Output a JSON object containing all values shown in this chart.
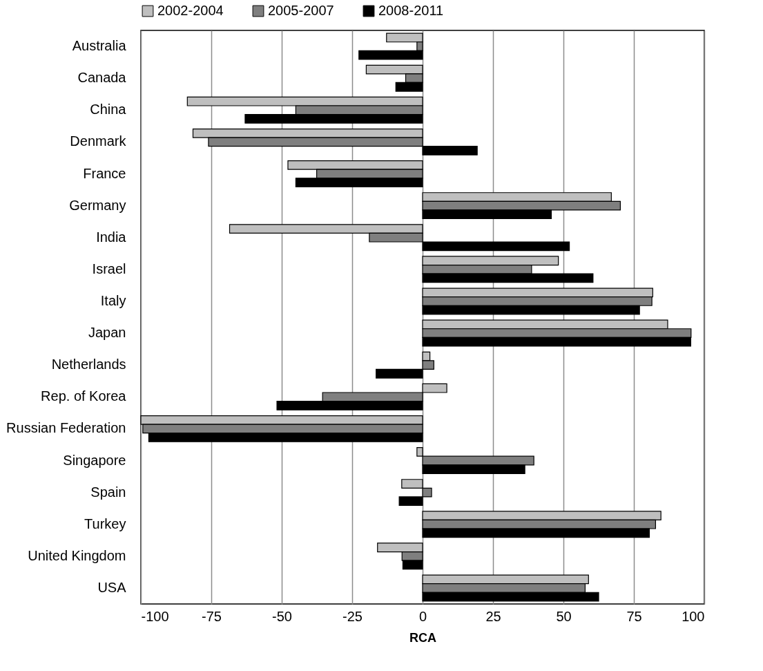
{
  "chart_data": {
    "type": "bar",
    "orientation": "horizontal",
    "xlabel": "RCA",
    "categories": [
      "Australia",
      "Canada",
      "China",
      "Denmark",
      "France",
      "Germany",
      "India",
      "Israel",
      "Italy",
      "Japan",
      "Netherlands",
      "Rep. of Korea",
      "Russian Federation",
      "Singapore",
      "Spain",
      "Turkey",
      "United Kingdom",
      "USA"
    ],
    "series": [
      {
        "name": "2002-2004",
        "color": "#bfbfbf",
        "values": [
          -12.8,
          -20,
          -83.5,
          -81.5,
          -47.8,
          67,
          -68.5,
          48.2,
          81.7,
          87,
          2.6,
          8.6,
          -100,
          -2,
          -7.4,
          84.6,
          -16,
          58.9
        ]
      },
      {
        "name": "2005-2007",
        "color": "#7f7f7f",
        "values": [
          -2,
          -6,
          -45,
          -76,
          -37.6,
          70.2,
          -18.9,
          38.7,
          81.4,
          95.3,
          4,
          -35.5,
          -99.3,
          39.5,
          3.2,
          82.7,
          -7.3,
          57.7
        ]
      },
      {
        "name": "2008-2011",
        "color": "#000000",
        "values": [
          -22.6,
          -9.5,
          -63,
          19.4,
          -45,
          45.7,
          52.1,
          60.5,
          77,
          95.2,
          -16.5,
          -51.7,
          -97.2,
          36.3,
          -8.3,
          80.5,
          -7,
          62.5
        ]
      }
    ],
    "xlim": [
      -100,
      100
    ],
    "xticks": [
      -100,
      -75,
      -50,
      -25,
      0,
      25,
      50,
      75,
      100
    ],
    "grid": "x",
    "legend": "top"
  }
}
